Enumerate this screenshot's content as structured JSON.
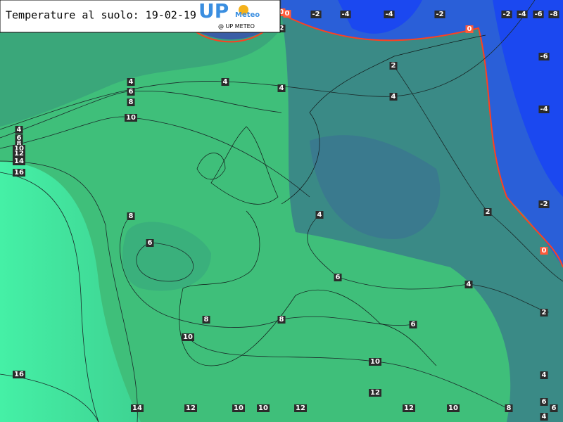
{
  "header": {
    "title": "Temperature al suolo: 19-02-19",
    "logo": "UP",
    "logo_sub": "Meteo",
    "credit": "@ UP METEO"
  },
  "contour_labels": [
    0,
    0,
    -2,
    -4,
    -4,
    -2,
    -2,
    -4,
    -6,
    -8,
    2,
    0,
    -6,
    2,
    4,
    4,
    4,
    4,
    6,
    8,
    10,
    -4,
    4,
    6,
    8,
    10,
    12,
    14,
    16,
    -2,
    2,
    4,
    8,
    0,
    6,
    6,
    4,
    2,
    8,
    8,
    6,
    10,
    10,
    16,
    4,
    12,
    14,
    12,
    10,
    10,
    12,
    12,
    10,
    8,
    6,
    6,
    4
  ]
}
